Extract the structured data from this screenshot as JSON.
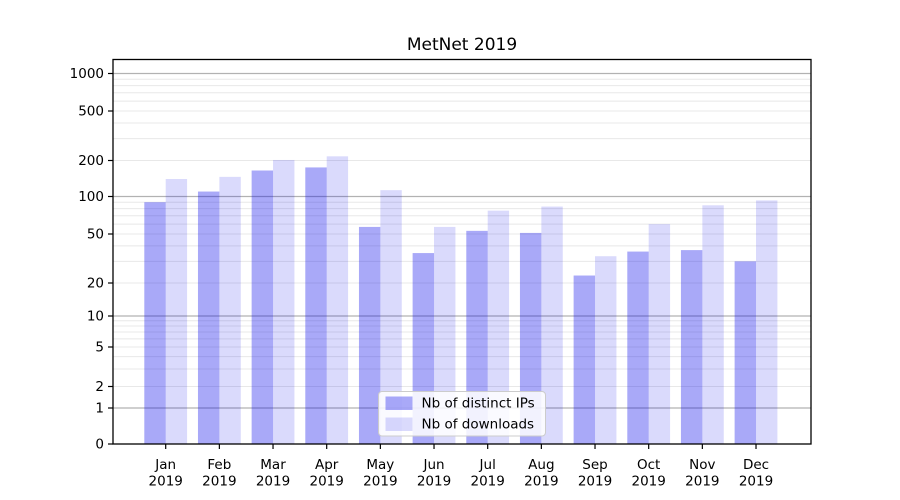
{
  "chart_data": {
    "type": "bar",
    "title": "MetNet 2019",
    "categories": [
      "Jan",
      "Feb",
      "Mar",
      "Apr",
      "May",
      "Jun",
      "Jul",
      "Aug",
      "Sep",
      "Oct",
      "Nov",
      "Dec"
    ],
    "category_year": "2019",
    "series": [
      {
        "name": "Nb of distinct IPs",
        "color": "rgba(10,10,235,0.35)",
        "approx_hex_on_white": "#a6a6f2",
        "values": [
          90,
          110,
          165,
          175,
          57,
          35,
          53,
          51,
          23,
          36,
          37,
          30
        ]
      },
      {
        "name": "Nb of downloads",
        "color": "rgba(10,10,235,0.15)",
        "approx_hex_on_white": "#d9d9f9",
        "values": [
          140,
          146,
          202,
          216,
          113,
          57,
          77,
          83,
          33,
          60,
          85,
          93
        ]
      }
    ],
    "yscale": "symlog",
    "yticks": [
      0,
      1,
      2,
      5,
      10,
      20,
      50,
      100,
      200,
      500,
      1000
    ],
    "ylim": [
      0,
      1270
    ],
    "grid": true,
    "grid_major_color": "#b2b2b2",
    "grid_minor_color": "#e8e8e8",
    "legend_position": "lower center",
    "legend_border_color": "#cccccc"
  }
}
